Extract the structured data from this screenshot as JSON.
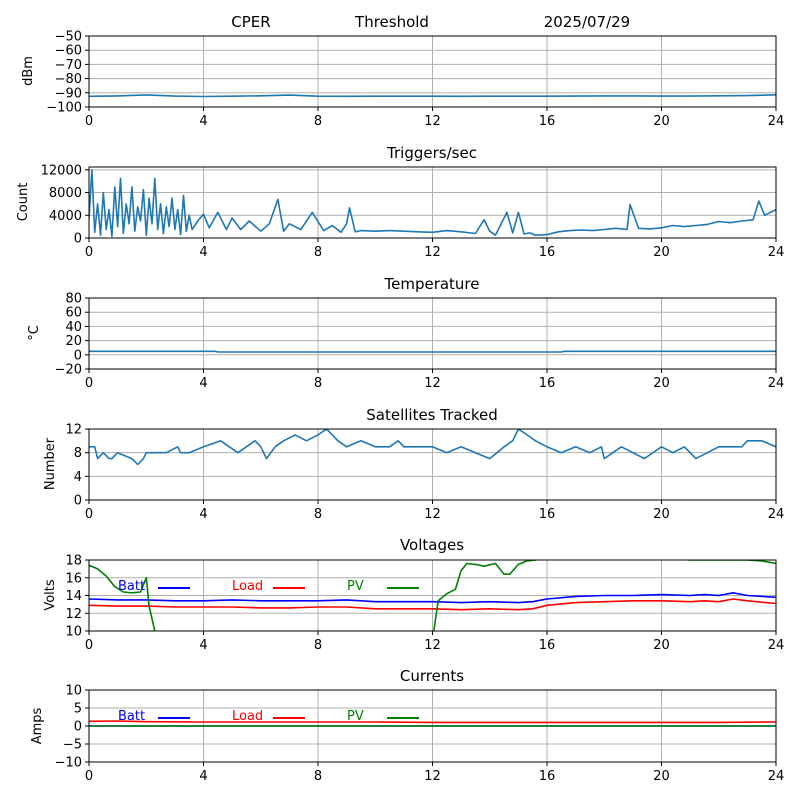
{
  "header": {
    "station": "CPER",
    "mode": "Threshold",
    "date": "2025/07/29"
  },
  "colors": {
    "series": "#1f77b4",
    "batt": "#0000ff",
    "load": "#ff0000",
    "pv": "#008000",
    "grid": "#b0b0b0"
  },
  "chart_data": [
    {
      "id": "threshold",
      "type": "line",
      "title": "",
      "xlabel": "",
      "ylabel": "dBm",
      "xlim": [
        0,
        24
      ],
      "ylim": [
        -100,
        -50
      ],
      "xticks": [
        0,
        4,
        8,
        12,
        16,
        20,
        24
      ],
      "yticks": [
        -100,
        -90,
        -80,
        -70,
        -60,
        -50
      ],
      "grid": true,
      "series": [
        {
          "color": "#1f77b4",
          "x": [
            0,
            1,
            2,
            3,
            4,
            5,
            6,
            7,
            8,
            9,
            10,
            11,
            12,
            13,
            14,
            15,
            16,
            17,
            18,
            19,
            20,
            21,
            22,
            23,
            24
          ],
          "y": [
            -92.5,
            -92.2,
            -91.5,
            -92.3,
            -92.6,
            -92.4,
            -92.1,
            -91.6,
            -92.4,
            -92.5,
            -92.4,
            -92.4,
            -92.4,
            -92.5,
            -92.4,
            -92.4,
            -92.4,
            -92.3,
            -92.2,
            -92.2,
            -92.3,
            -92.3,
            -92.1,
            -92.0,
            -91.4
          ]
        }
      ]
    },
    {
      "id": "triggers",
      "type": "line",
      "title": "Triggers/sec",
      "xlabel": "",
      "ylabel": "Count",
      "xlim": [
        0,
        24
      ],
      "ylim": [
        0,
        12500
      ],
      "xticks": [
        0,
        4,
        8,
        12,
        16,
        20,
        24
      ],
      "yticks": [
        0,
        4000,
        8000,
        12000
      ],
      "grid": true,
      "series": [
        {
          "color": "#1f77b4",
          "x": [
            0,
            0.1,
            0.2,
            0.3,
            0.4,
            0.5,
            0.6,
            0.7,
            0.8,
            0.9,
            1.0,
            1.1,
            1.2,
            1.3,
            1.4,
            1.5,
            1.6,
            1.7,
            1.8,
            1.9,
            2.0,
            2.1,
            2.2,
            2.3,
            2.4,
            2.5,
            2.6,
            2.7,
            2.8,
            2.9,
            3.0,
            3.1,
            3.2,
            3.3,
            3.4,
            3.5,
            3.6,
            3.8,
            4.0,
            4.2,
            4.5,
            4.8,
            5.0,
            5.3,
            5.6,
            6.0,
            6.3,
            6.6,
            6.8,
            7.0,
            7.4,
            7.8,
            8.2,
            8.5,
            8.8,
            9.0,
            9.1,
            9.3,
            9.5,
            10.0,
            10.5,
            11.0,
            11.5,
            12.0,
            12.5,
            13.0,
            13.5,
            13.8,
            14.0,
            14.2,
            14.6,
            14.8,
            15.0,
            15.2,
            15.4,
            15.6,
            16.0,
            16.4,
            16.8,
            17.2,
            17.6,
            18.0,
            18.4,
            18.8,
            18.9,
            19.2,
            19.6,
            20.0,
            20.4,
            20.8,
            21.2,
            21.6,
            22.0,
            22.4,
            22.8,
            23.2,
            23.4,
            23.6,
            24.0
          ],
          "y": [
            3500,
            12000,
            1000,
            6000,
            500,
            8000,
            1500,
            5000,
            300,
            9000,
            2000,
            10500,
            800,
            6000,
            2500,
            9000,
            1200,
            5500,
            3000,
            8500,
            500,
            7000,
            2500,
            10500,
            1500,
            6000,
            800,
            5500,
            2000,
            7000,
            1500,
            5000,
            600,
            7500,
            1200,
            4000,
            1500,
            3000,
            4200,
            1800,
            4500,
            1500,
            3500,
            1500,
            3000,
            1200,
            2500,
            6800,
            1200,
            2500,
            1500,
            4500,
            1300,
            2200,
            1000,
            2500,
            5300,
            1100,
            1300,
            1200,
            1300,
            1200,
            1100,
            1000,
            1300,
            1100,
            800,
            3200,
            1200,
            500,
            4500,
            900,
            4500,
            700,
            900,
            500,
            600,
            1100,
            1300,
            1400,
            1300,
            1500,
            1700,
            1500,
            5900,
            1700,
            1600,
            1800,
            2200,
            2000,
            2200,
            2400,
            2900,
            2700,
            3000,
            3200,
            6500,
            4000,
            5000
          ]
        }
      ]
    },
    {
      "id": "temperature",
      "type": "line",
      "title": "Temperature",
      "xlabel": "",
      "ylabel": "°C",
      "xlim": [
        0,
        24
      ],
      "ylim": [
        -20,
        80
      ],
      "xticks": [
        0,
        4,
        8,
        12,
        16,
        20,
        24
      ],
      "yticks": [
        -20,
        0,
        20,
        40,
        60,
        80
      ],
      "grid": true,
      "series": [
        {
          "color": "#1f77b4",
          "x": [
            0,
            4.4,
            4.5,
            16.5,
            16.6,
            24
          ],
          "y": [
            5,
            5,
            4,
            4,
            5,
            5
          ]
        }
      ]
    },
    {
      "id": "satellites",
      "type": "line",
      "title": "Satellites Tracked",
      "xlabel": "",
      "ylabel": "Number",
      "xlim": [
        0,
        24
      ],
      "ylim": [
        0,
        12
      ],
      "xticks": [
        0,
        4,
        8,
        12,
        16,
        20,
        24
      ],
      "yticks": [
        0,
        4,
        8,
        12
      ],
      "grid": true,
      "series": [
        {
          "color": "#1f77b4",
          "x": [
            0,
            0.2,
            0.3,
            0.5,
            0.7,
            0.8,
            1.0,
            1.5,
            1.5,
            1.7,
            1.9,
            2.0,
            2.7,
            3.1,
            3.2,
            3.5,
            4.0,
            4.6,
            4.9,
            5.2,
            5.5,
            5.8,
            6.0,
            6.2,
            6.5,
            6.8,
            7.2,
            7.6,
            8.0,
            8.3,
            8.5,
            8.7,
            9.0,
            9.5,
            10.0,
            10.5,
            10.8,
            11.0,
            11.5,
            12.0,
            12.5,
            13.0,
            13.5,
            14.0,
            14.5,
            14.8,
            15.0,
            15.3,
            15.6,
            16.0,
            16.5,
            17.0,
            17.5,
            17.9,
            18.0,
            18.3,
            18.6,
            19.0,
            19.4,
            19.7,
            20.0,
            20.4,
            20.8,
            21.2,
            21.6,
            22.0,
            22.4,
            22.8,
            23.0,
            23.5,
            24.0
          ],
          "y": [
            9,
            9,
            7,
            8,
            7,
            7,
            8,
            7,
            7,
            6,
            7,
            8,
            8,
            9,
            8,
            8,
            9,
            10,
            9,
            8,
            9,
            10,
            9,
            7,
            9,
            10,
            11,
            10,
            11,
            12,
            11,
            10,
            9,
            10,
            9,
            9,
            10,
            9,
            9,
            9,
            8,
            9,
            8,
            7,
            9,
            10,
            12,
            11,
            10,
            9,
            8,
            9,
            8,
            9,
            7,
            8,
            9,
            8,
            7,
            8,
            9,
            8,
            9,
            7,
            8,
            9,
            9,
            9,
            10,
            10,
            9
          ]
        }
      ]
    },
    {
      "id": "voltages",
      "type": "line",
      "title": "Voltages",
      "xlabel": "",
      "ylabel": "Volts",
      "xlim": [
        0,
        24
      ],
      "ylim": [
        10,
        18
      ],
      "xticks": [
        0,
        4,
        8,
        12,
        16,
        20,
        24
      ],
      "yticks": [
        10,
        12,
        14,
        16,
        18
      ],
      "grid": true,
      "legend": [
        "Batt",
        "Load",
        "PV"
      ],
      "series": [
        {
          "name": "Batt",
          "color": "#0000ff",
          "x": [
            0,
            1,
            2,
            3,
            4,
            5,
            6,
            7,
            8,
            9,
            10,
            11,
            12,
            13,
            14,
            15,
            15.5,
            16,
            17,
            18,
            19,
            20,
            21,
            21.5,
            22,
            22.5,
            23,
            24
          ],
          "y": [
            13.6,
            13.5,
            13.5,
            13.4,
            13.4,
            13.5,
            13.4,
            13.4,
            13.4,
            13.5,
            13.3,
            13.3,
            13.3,
            13.2,
            13.3,
            13.2,
            13.3,
            13.6,
            13.9,
            14.0,
            14.0,
            14.1,
            14.0,
            14.1,
            14.0,
            14.3,
            14.0,
            13.8
          ]
        },
        {
          "name": "Load",
          "color": "#ff0000",
          "x": [
            0,
            1,
            2,
            3,
            4,
            5,
            6,
            7,
            8,
            9,
            10,
            11,
            12,
            13,
            14,
            15,
            15.5,
            16,
            17,
            18,
            19,
            20,
            21,
            21.5,
            22,
            22.5,
            23,
            24
          ],
          "y": [
            12.9,
            12.8,
            12.8,
            12.7,
            12.7,
            12.7,
            12.6,
            12.6,
            12.7,
            12.7,
            12.5,
            12.5,
            12.5,
            12.4,
            12.5,
            12.4,
            12.5,
            12.9,
            13.2,
            13.3,
            13.4,
            13.4,
            13.3,
            13.4,
            13.3,
            13.6,
            13.4,
            13.1
          ]
        },
        {
          "name": "PV",
          "color": "#008000",
          "x": [
            0,
            0.3,
            0.6,
            0.9,
            1.2,
            1.5,
            1.8,
            2.0,
            2.1,
            2.3,
            2.5,
            12.0,
            12.2,
            12.5,
            12.8,
            13.0,
            13.2,
            13.5,
            13.8,
            14.2,
            14.5,
            14.7,
            15.0,
            15.3,
            15.6,
            16.0,
            20.5,
            21.0,
            22.0,
            23.0,
            23.5,
            24.0
          ],
          "y": [
            17.4,
            17.0,
            16.2,
            15.0,
            14.4,
            14.3,
            14.4,
            16.0,
            12.8,
            10.0,
            7.0,
            9.0,
            13.4,
            14.2,
            14.7,
            16.8,
            17.6,
            17.5,
            17.3,
            17.6,
            16.4,
            16.4,
            17.5,
            17.9,
            18.0,
            18.2,
            18.1,
            18.0,
            18.0,
            18.0,
            17.9,
            17.6
          ]
        }
      ]
    },
    {
      "id": "currents",
      "type": "line",
      "title": "Currents",
      "xlabel": "",
      "ylabel": "Amps",
      "xlim": [
        0,
        24
      ],
      "ylim": [
        -10,
        10
      ],
      "xticks": [
        0,
        4,
        8,
        12,
        16,
        20,
        24
      ],
      "yticks": [
        -10,
        -5,
        0,
        5,
        10
      ],
      "grid": true,
      "legend": [
        "Batt",
        "Load",
        "PV"
      ],
      "series": [
        {
          "name": "Batt",
          "color": "#0000ff",
          "x": [
            0,
            24
          ],
          "y": [
            0,
            0
          ]
        },
        {
          "name": "Load",
          "color": "#ff0000",
          "x": [
            0,
            1,
            2,
            4,
            6,
            8,
            10,
            12,
            14,
            16,
            18,
            20,
            22,
            24
          ],
          "y": [
            1.3,
            1.4,
            1.2,
            1.1,
            1.1,
            1.1,
            1.1,
            1.0,
            1.0,
            1.0,
            1.0,
            1.0,
            1.0,
            1.1
          ]
        },
        {
          "name": "PV",
          "color": "#008000",
          "x": [
            0,
            24
          ],
          "y": [
            0,
            0
          ]
        }
      ]
    }
  ]
}
